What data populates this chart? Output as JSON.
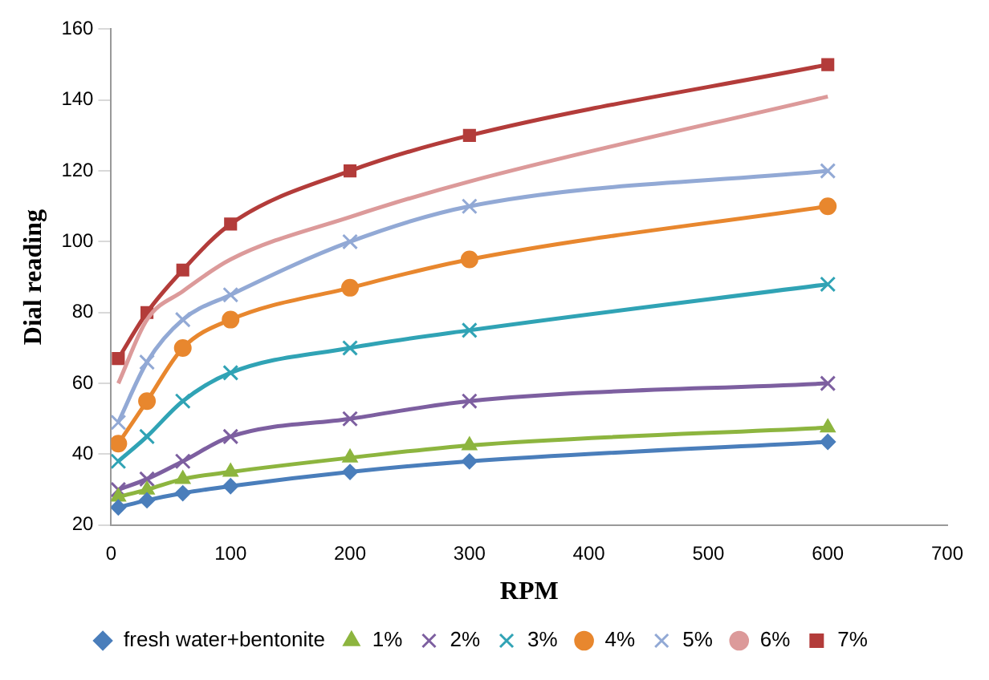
{
  "chart_data": {
    "type": "line",
    "xlabel": "RPM",
    "ylabel": "Dial reading",
    "x": [
      6,
      30,
      60,
      100,
      200,
      300,
      600
    ],
    "xlim": [
      0,
      700
    ],
    "xticks": [
      0,
      100,
      200,
      300,
      400,
      500,
      600,
      700
    ],
    "ylim": [
      20,
      160
    ],
    "yticks": [
      20,
      40,
      60,
      80,
      100,
      120,
      140,
      160
    ],
    "grid": false,
    "legend": "bottom",
    "series": [
      {
        "name": "fresh water+bentonite",
        "color": "#4a7ebb",
        "marker": "diamond",
        "values": [
          25,
          27,
          29,
          31,
          35,
          38,
          43.5
        ]
      },
      {
        "name": "1%",
        "color": "#8db53f",
        "marker": "triangle",
        "values": [
          28,
          30,
          33,
          35,
          39,
          42.5,
          47.5
        ]
      },
      {
        "name": "2%",
        "color": "#7d5fa0",
        "marker": "cross",
        "values": [
          30,
          33,
          38,
          45,
          50,
          55,
          60
        ]
      },
      {
        "name": "3%",
        "color": "#30a3b5",
        "marker": "cross",
        "values": [
          38,
          45,
          55,
          63,
          70,
          75,
          88
        ]
      },
      {
        "name": "4%",
        "color": "#e8872e",
        "marker": "circle",
        "values": [
          43,
          55,
          70,
          78,
          87,
          95,
          110
        ]
      },
      {
        "name": "5%",
        "color": "#92a9d5",
        "marker": "cross",
        "values": [
          49,
          66,
          78,
          85,
          100,
          110,
          120
        ]
      },
      {
        "name": "6%",
        "color": "#dc9a9a",
        "marker": "none",
        "values": [
          60,
          78,
          86,
          95,
          107,
          117,
          141
        ]
      },
      {
        "name": "7%",
        "color": "#b33c3a",
        "marker": "square",
        "values": [
          67,
          80,
          92,
          105,
          120,
          130,
          150
        ]
      }
    ]
  }
}
